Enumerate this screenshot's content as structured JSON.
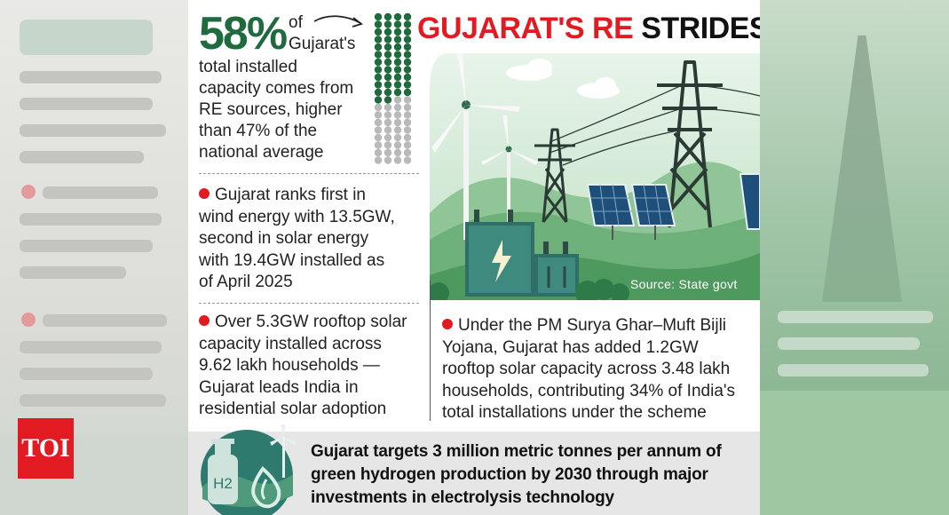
{
  "stat": {
    "percent": "58%",
    "lines": [
      "of",
      "Gujarat's",
      "total installed",
      "capacity comes from",
      "RE sources, higher",
      "than 47% of the",
      "national average"
    ],
    "filled_fraction": 0.58
  },
  "headline": {
    "part1": "GUJARAT'S RE",
    "part2": "STRIDES"
  },
  "bullet1": [
    "Gujarat ranks first in",
    "wind energy with 13.5GW,",
    "second in solar energy",
    "with 19.4GW installed as",
    "of April 2025"
  ],
  "bullet2": [
    "Over 5.3GW rooftop solar",
    "capacity installed across",
    "9.62 lakh households —",
    "Gujarat leads India in",
    "residential solar adoption"
  ],
  "bullet3": [
    "Under the PM Surya Ghar–Muft Bijli",
    "Yojana, Gujarat has added 1.2GW",
    "rooftop solar capacity across 3.48 lakh",
    "households, contributing 34% of India's",
    "total installations under the scheme"
  ],
  "source": "Source: State govt",
  "footer": [
    "Gujarat targets 3 million metric tonnes per annum of",
    "green hydrogen production by 2030 through major",
    "investments in electrolysis technology"
  ],
  "h2_label": "H2",
  "logo": "TOI",
  "icons": {
    "arrow": "curved-arrow-icon",
    "illustration": "wind-solar-transmission-illustration",
    "hydrogen": "hydrogen-tank-icon"
  },
  "colors": {
    "green": "#1f6b3d",
    "red": "#e21b22",
    "teal": "#2f7a6e"
  }
}
